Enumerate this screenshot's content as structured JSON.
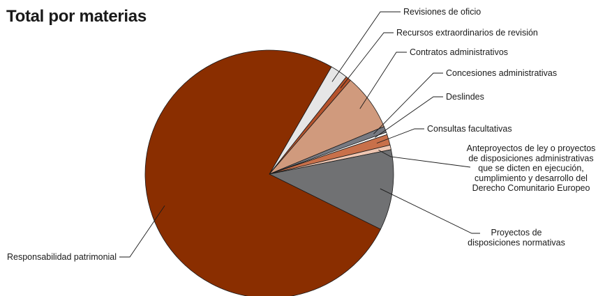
{
  "chart_data": {
    "type": "pie",
    "title": "Total por materias",
    "start_angle_deg": -60,
    "direction": "clockwise",
    "slices": [
      {
        "label": "Revisiones de oficio",
        "value": 2.3,
        "color": "#e6e6e6"
      },
      {
        "label": "Recursos extraordinarios de revisión",
        "value": 0.7,
        "color": "#b5532c"
      },
      {
        "label": "Contratos administrativos",
        "value": 7.4,
        "color": "#d09a7d"
      },
      {
        "label": "Concesiones administrativas",
        "value": 0.8,
        "color": "#777a82"
      },
      {
        "label": "Deslindes",
        "value": 0.3,
        "color": "#ffffff"
      },
      {
        "label": "Consultas facultativas",
        "value": 1.4,
        "color": "#c8704a"
      },
      {
        "label": "Anteproyectos de ley o proyectos de disposiciones administrativas que se dicten en ejecución, cumplimiento y desarrollo del Derecho Comunitario Europeo",
        "value": 0.6,
        "color": "#efc6b2",
        "label_lines": [
          "Anteproyectos de ley o proyectos",
          "de disposiciones administrativas",
          "que se dicten en ejecución,",
          "cumplimiento y desarrollo del",
          "Derecho Comunitario Europeo"
        ]
      },
      {
        "label": "Proyectos de disposiciones normativas",
        "value": 10.5,
        "color": "#707173",
        "label_lines": [
          "Proyectos de",
          "disposiciones normativas"
        ]
      },
      {
        "label": "Responsabilidad patrimonial",
        "value": 76.0,
        "color": "#8a2e00"
      }
    ]
  }
}
